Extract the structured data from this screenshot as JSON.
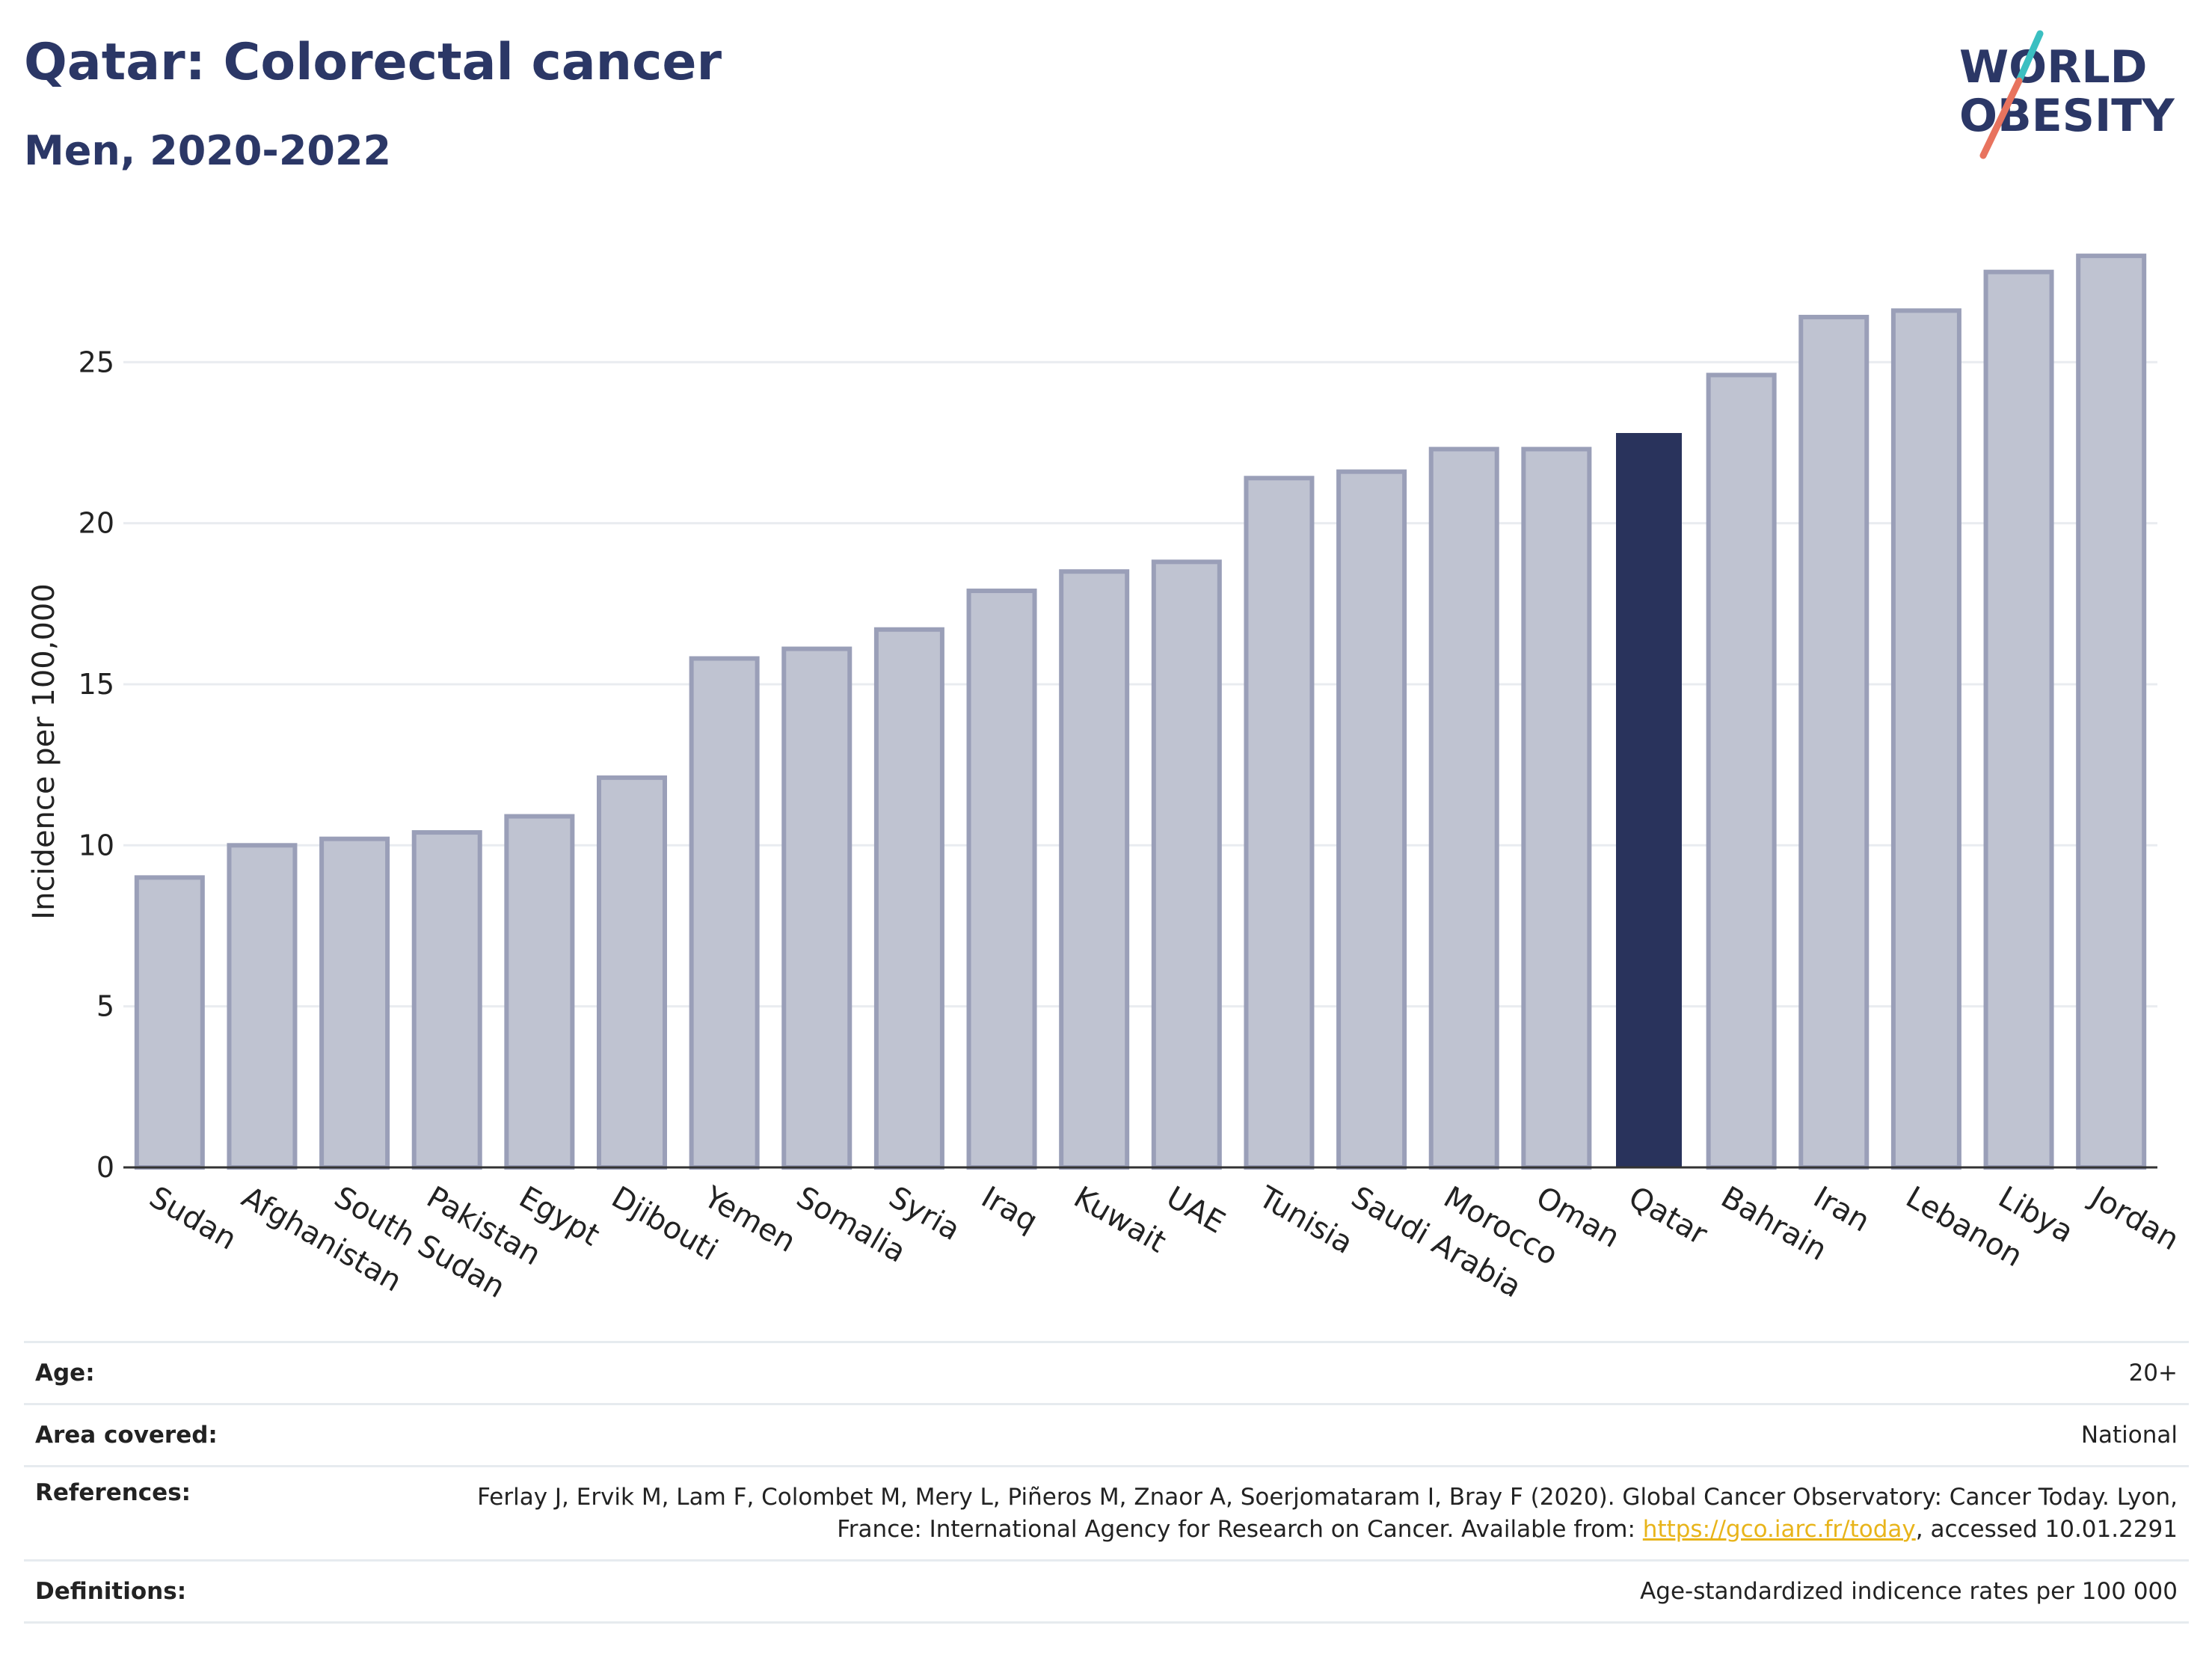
{
  "header": {
    "title": "Qatar: Colorectal cancer",
    "subtitle": "Men, 2020-2022"
  },
  "logo": {
    "line1": "WORLD",
    "line2": "OBESITY"
  },
  "colors": {
    "bar": "#bfc3d1",
    "bar_border": "#9a9fb8",
    "highlight": "#29335c",
    "title": "#2b3766",
    "link": "#e8b41a"
  },
  "chart_data": {
    "type": "bar",
    "categories": [
      "Sudan",
      "Afghanistan",
      "South Sudan",
      "Pakistan",
      "Egypt",
      "Djibouti",
      "Yemen",
      "Somalia",
      "Syria",
      "Iraq",
      "Kuwait",
      "UAE",
      "Tunisia",
      "Saudi Arabia",
      "Morocco",
      "Oman",
      "Qatar",
      "Bahrain",
      "Iran",
      "Lebanon",
      "Libya",
      "Jordan"
    ],
    "values": [
      9.0,
      10.0,
      10.2,
      10.4,
      10.9,
      12.1,
      15.8,
      16.1,
      16.7,
      17.9,
      18.5,
      18.8,
      21.4,
      21.6,
      22.3,
      22.3,
      22.8,
      24.6,
      26.4,
      26.6,
      27.8,
      28.3
    ],
    "highlight": "Qatar",
    "ylabel": "Incidence per 100,000",
    "xlabel": "",
    "ylim": [
      0,
      30
    ],
    "yticks": [
      0,
      5,
      10,
      15,
      20,
      25
    ],
    "grid": true
  },
  "info": {
    "age_label": "Age:",
    "age_value": "20+",
    "area_label": "Area covered:",
    "area_value": "National",
    "references_label": "References:",
    "references_text": "Ferlay J, Ervik M, Lam F, Colombet M, Mery L, Piñeros M, Znaor A, Soerjomataram I, Bray F (2020). Global Cancer Observatory: Cancer Today. Lyon, France: International Agency for Research on Cancer. Available from: ",
    "references_link": "https://gco.iarc.fr/today",
    "references_tail": ", accessed 10.01.2291",
    "definitions_label": "Definitions:",
    "definitions_value": "Age-standardized indicence rates per 100 000"
  }
}
